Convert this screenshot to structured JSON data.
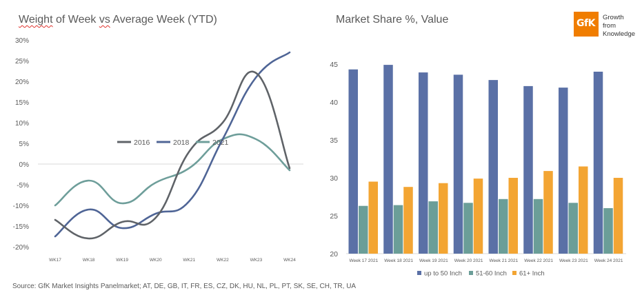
{
  "left_title_parts": [
    "Weight",
    " of Week ",
    "vs",
    " Average Week (YTD)"
  ],
  "right_title": "Market Share %, Value",
  "logo": {
    "mark": "GfK",
    "tagline": [
      "Growth",
      "from",
      "Knowledge"
    ],
    "color": "#f07d00"
  },
  "source": "Source: GfK Market Insights Panelmarket; AT, DE, GB, IT, FR, ES, CZ, DK, HU, NL, PL, PT, SK, SE, CH, TR, UA",
  "chart_data": [
    {
      "type": "line",
      "title": "Weight of Week vs Average Week (YTD)",
      "x": [
        "WK17",
        "WK18",
        "WK19",
        "WK20",
        "WK21",
        "WK22",
        "WK23",
        "WK24"
      ],
      "ylim": [
        -20,
        30
      ],
      "yticks": [
        "-20%",
        "-15%",
        "-10%",
        "-5%",
        "0%",
        "5%",
        "10%",
        "15%",
        "20%",
        "25%",
        "30%"
      ],
      "ytick_values": [
        -20,
        -15,
        -10,
        -5,
        0,
        5,
        10,
        15,
        20,
        25,
        30
      ],
      "grid": false,
      "zero_line": true,
      "legend": "center",
      "series": [
        {
          "name": "2016",
          "color": "#5f6368",
          "values": [
            -13.5,
            -18,
            -14,
            -13,
            3,
            10,
            22,
            -1
          ]
        },
        {
          "name": "2018",
          "color": "#4f6596",
          "values": [
            -17.5,
            -11,
            -15.5,
            -12,
            -9,
            6,
            21,
            27
          ]
        },
        {
          "name": "2021",
          "color": "#6e9e9a",
          "values": [
            -10,
            -4,
            -9.5,
            -4.5,
            -1,
            6,
            6,
            -1.5
          ]
        }
      ]
    },
    {
      "type": "bar",
      "title": "Market Share %, Value",
      "categories": [
        "Week 17 2021",
        "Week 18 2021",
        "Week 19 2021",
        "Week 20 2021",
        "Week 21 2021",
        "Week 22 2021",
        "Week 23 2021",
        "Week 24 2021"
      ],
      "ylim": [
        20,
        45
      ],
      "yticks": [
        20,
        25,
        30,
        35,
        40,
        45
      ],
      "grid": false,
      "legend": "bottom",
      "series": [
        {
          "name": "up to 50 Inch",
          "color": "#5a70a6",
          "values": [
            44.3,
            44.9,
            43.9,
            43.6,
            42.9,
            42.1,
            41.9,
            44.0
          ]
        },
        {
          "name": "51-60 Inch",
          "color": "#6b9e98",
          "values": [
            26.3,
            26.4,
            26.9,
            26.7,
            27.2,
            27.2,
            26.7,
            26.0
          ]
        },
        {
          "name": "61+ Inch",
          "color": "#f3a533",
          "values": [
            29.5,
            28.8,
            29.3,
            29.9,
            30.0,
            30.9,
            31.5,
            30.0
          ]
        }
      ]
    }
  ]
}
